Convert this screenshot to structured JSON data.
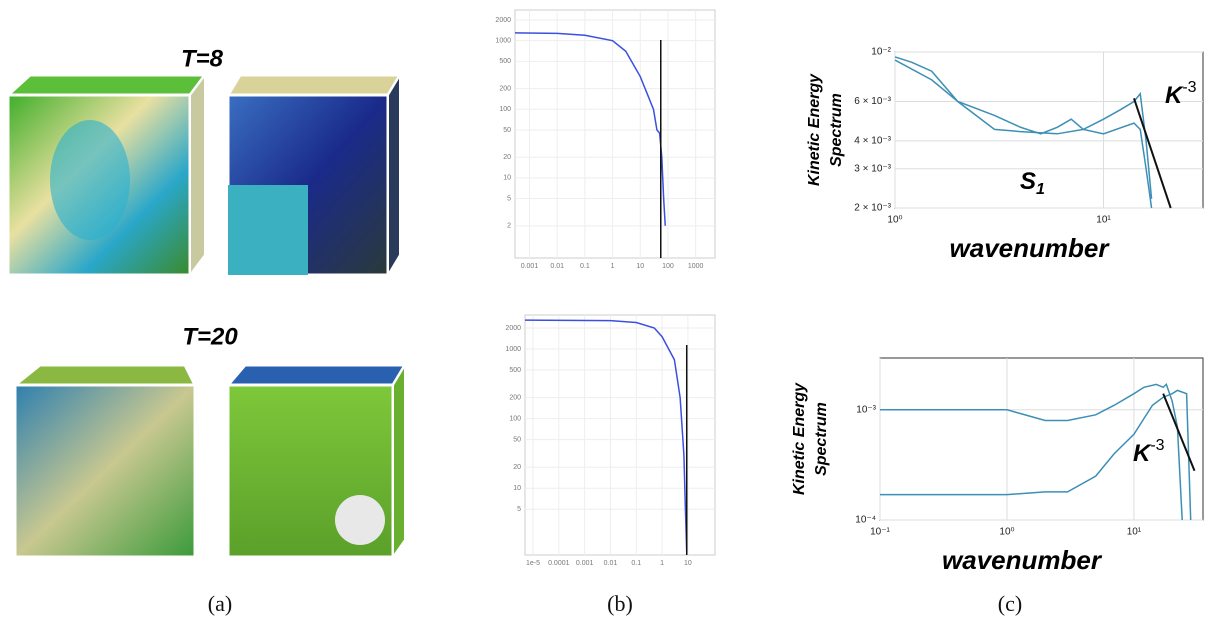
{
  "figure": {
    "panel_labels": [
      "(a)",
      "(b)",
      "(c)"
    ],
    "time_labels": [
      "T=8",
      "T=20"
    ]
  },
  "chart_data": [
    {
      "type": "line",
      "log_x": true,
      "log_y": true,
      "grid": true,
      "xlim": [
        0.0003,
        5000
      ],
      "ylim": [
        0.68,
        2800
      ],
      "xticks": [
        0.001,
        0.01,
        0.1,
        1,
        10,
        100,
        1000
      ],
      "yticks": [
        2,
        5,
        10,
        20,
        50,
        100,
        200,
        500,
        1000,
        2000
      ],
      "series": [
        {
          "color": "#3b4fe0",
          "x": [
            0.0003,
            0.01,
            0.1,
            1,
            3,
            10,
            20,
            30,
            40,
            50,
            60,
            70,
            80
          ],
          "values": [
            1300,
            1280,
            1200,
            1000,
            700,
            300,
            150,
            100,
            50,
            45,
            20,
            5,
            2
          ]
        }
      ],
      "vline": 55
    },
    {
      "type": "line",
      "log_x": true,
      "log_y": true,
      "grid": true,
      "xlim": [
        4.9e-06,
        112
      ],
      "ylim": [
        1.1,
        3075
      ],
      "xticks": [
        {
          "value": 1e-05,
          "label": "1e-5"
        },
        0.0001,
        0.001,
        0.01,
        0.1,
        1,
        10
      ],
      "yticks": [
        5,
        10,
        20,
        50,
        100,
        200,
        500,
        1000,
        2000
      ],
      "series": [
        {
          "color": "#3b4fe0",
          "x": [
            4.9e-06,
            0.01,
            0.1,
            0.5,
            1,
            3,
            5,
            7,
            8,
            9
          ],
          "values": [
            2600,
            2550,
            2400,
            2000,
            1500,
            700,
            200,
            30,
            5,
            1.2
          ]
        }
      ],
      "vline": 9
    },
    {
      "type": "line",
      "log_x": true,
      "log_y": true,
      "grid": true,
      "xlabel": "wavenumber",
      "ylabel": [
        "Kinetic Energy",
        "Spectrum"
      ],
      "xlim": [
        1,
        30
      ],
      "ylim": [
        0.002,
        0.01
      ],
      "xticks": [
        {
          "value": 1,
          "label": "10⁰"
        },
        {
          "value": 10,
          "label": "10¹"
        }
      ],
      "yticks": [
        {
          "value": 0.002,
          "label": "2 × 10⁻³"
        },
        {
          "value": 0.003,
          "label": "3 × 10⁻³"
        },
        {
          "value": 0.004,
          "label": "4 × 10⁻³"
        },
        {
          "value": 0.006,
          "label": "6 × 10⁻³"
        },
        {
          "value": 0.01,
          "label": "10⁻²"
        }
      ],
      "series": [
        {
          "color": "#3d8fb5",
          "x": [
            1,
            1.5,
            2,
            3,
            4,
            5,
            6,
            7,
            8,
            10,
            12,
            14,
            15,
            16,
            17
          ],
          "values": [
            0.0092,
            0.0075,
            0.006,
            0.0052,
            0.0046,
            0.0043,
            0.0046,
            0.005,
            0.0045,
            0.005,
            0.0055,
            0.006,
            0.0065,
            0.004,
            0.0022
          ]
        },
        {
          "color": "#3d8fb5",
          "x": [
            1,
            1.2,
            1.5,
            2,
            3,
            4,
            6,
            8,
            10,
            14,
            15,
            16,
            17
          ],
          "values": [
            0.0095,
            0.009,
            0.0082,
            0.006,
            0.0045,
            0.0044,
            0.0043,
            0.0045,
            0.0043,
            0.0048,
            0.0045,
            0.003,
            0.002
          ]
        }
      ],
      "ref_line": {
        "x": [
          14,
          21
        ],
        "y": [
          0.0062,
          0.002
        ]
      },
      "annotations": [
        {
          "base": "K",
          "exp": "-3"
        },
        {
          "base": "S",
          "sub": "1"
        }
      ]
    },
    {
      "type": "line",
      "log_x": true,
      "log_y": true,
      "grid": true,
      "xlabel": "wavenumber",
      "ylabel": [
        "Kinetic Energy",
        "Spectrum"
      ],
      "xlim": [
        0.1,
        35
      ],
      "ylim": [
        0.0001,
        0.00295
      ],
      "xticks": [
        {
          "value": 0.1,
          "label": "10⁻¹"
        },
        {
          "value": 1,
          "label": "10⁰"
        },
        {
          "value": 10,
          "label": "10¹"
        }
      ],
      "yticks": [
        {
          "value": 0.0001,
          "label": "10⁻⁴"
        },
        {
          "value": 0.001,
          "label": "10⁻³"
        }
      ],
      "series": [
        {
          "color": "#3d8fb5",
          "x": [
            0.1,
            1,
            2,
            3,
            5,
            7,
            10,
            12,
            15,
            17,
            18,
            20,
            22,
            24
          ],
          "values": [
            0.001,
            0.001,
            0.0008,
            0.0008,
            0.0009,
            0.0011,
            0.0014,
            0.0016,
            0.0017,
            0.0016,
            0.0017,
            0.0012,
            0.0007,
            0.0001
          ]
        },
        {
          "color": "#3d8fb5",
          "x": [
            0.1,
            1,
            2,
            3,
            5,
            7,
            10,
            14,
            17,
            20,
            22,
            26,
            28
          ],
          "values": [
            0.00017,
            0.00017,
            0.00018,
            0.00018,
            0.00025,
            0.0004,
            0.0006,
            0.0011,
            0.0013,
            0.0014,
            0.0015,
            0.0014,
            0.0001
          ]
        }
      ],
      "ref_line": {
        "x": [
          17,
          30
        ],
        "y": [
          0.0014,
          0.00028
        ]
      },
      "annotations": [
        {
          "base": "K",
          "exp": "-3"
        }
      ]
    }
  ]
}
